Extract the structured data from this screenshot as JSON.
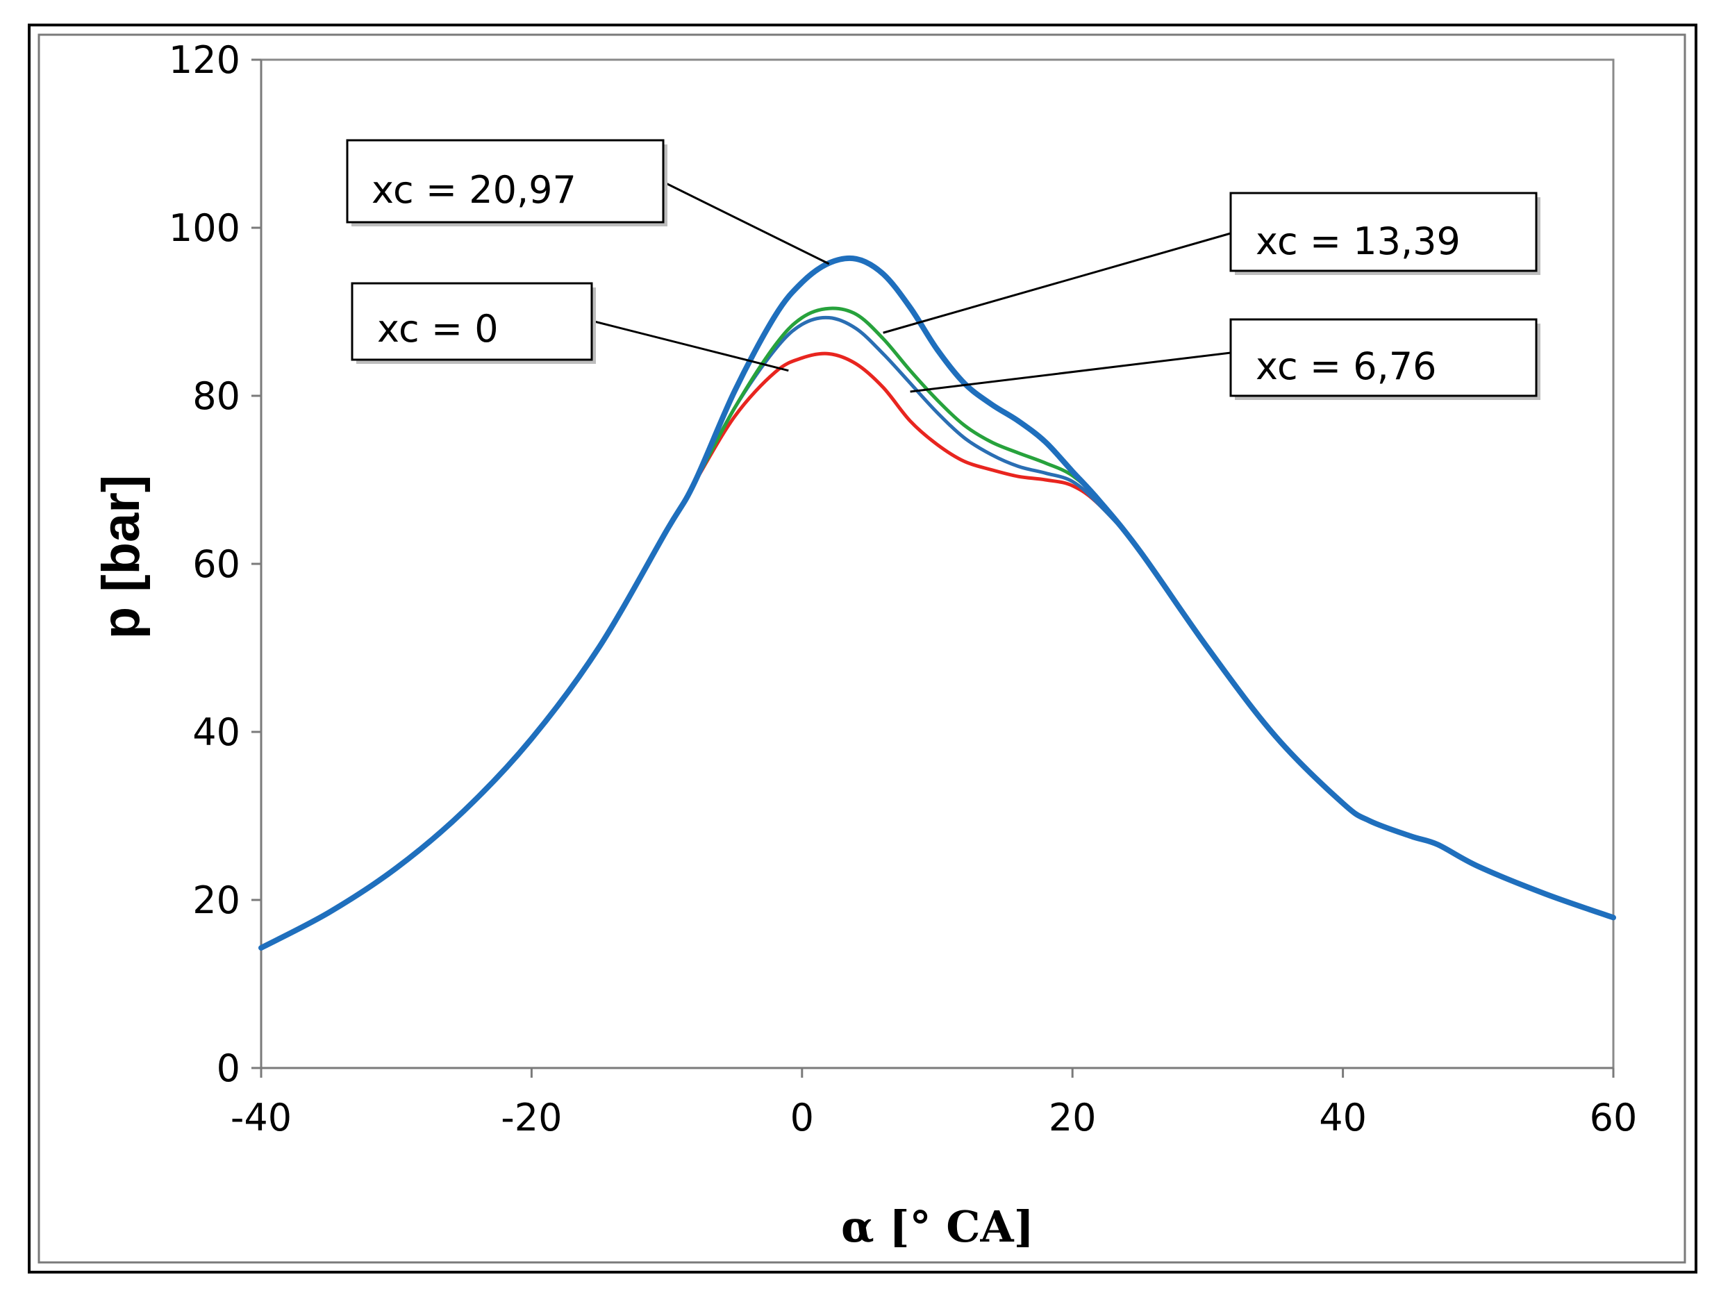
{
  "chart_data": {
    "type": "line",
    "title": "",
    "xlabel": "α [° CA]",
    "ylabel": "p [bar]",
    "xlim": [
      -40,
      60
    ],
    "ylim": [
      0,
      120
    ],
    "x_ticks": [
      "-40",
      "-20",
      "0",
      "20",
      "40",
      "60"
    ],
    "y_ticks": [
      "0",
      "20",
      "40",
      "60",
      "80",
      "100",
      "120"
    ],
    "grid": false,
    "colors": {
      "xc_0": "#e8251f",
      "xc_6_76": "#2a6eb3",
      "xc_13_39": "#27a23c",
      "xc_20_97": "#1f6fbd"
    },
    "series": [
      {
        "name": "xc = 0",
        "color_key": "xc_0",
        "x": [
          -40,
          -35,
          -30,
          -25,
          -20,
          -15,
          -10,
          -8,
          -5,
          -2,
          0,
          2,
          4,
          6,
          8,
          10,
          12,
          14,
          16,
          18,
          20,
          22,
          25,
          30,
          35,
          40,
          42,
          45,
          47,
          50,
          55,
          60
        ],
        "y": [
          14.3,
          18.5,
          23.8,
          30.6,
          39.2,
          50.1,
          64,
          69.5,
          77.5,
          82.8,
          84.5,
          85,
          83.8,
          81,
          77,
          74.2,
          72.2,
          71.2,
          70.4,
          70,
          69.3,
          67,
          61.5,
          50,
          39.5,
          31.5,
          29.4,
          27.6,
          26.6,
          24,
          20.7,
          17.9
        ]
      },
      {
        "name": "xc = 6,76",
        "color_key": "xc_6_76",
        "x": [
          -40,
          -35,
          -30,
          -25,
          -20,
          -15,
          -10,
          -8,
          -5,
          -2,
          0,
          2,
          4,
          6,
          8,
          10,
          12,
          14,
          16,
          18,
          20,
          22,
          25,
          30,
          35,
          40,
          42,
          45,
          47,
          50,
          55,
          60
        ],
        "y": [
          14.3,
          18.5,
          23.8,
          30.6,
          39.2,
          50.1,
          64,
          69.5,
          78.5,
          85.5,
          88.5,
          89.3,
          88,
          85,
          81.5,
          78,
          75,
          73,
          71.6,
          70.8,
          69.8,
          67,
          61.5,
          50,
          39.5,
          31.5,
          29.4,
          27.6,
          26.6,
          24,
          20.7,
          17.9
        ]
      },
      {
        "name": "xc = 13,39",
        "color_key": "xc_13_39",
        "x": [
          -40,
          -35,
          -30,
          -25,
          -20,
          -15,
          -10,
          -8,
          -5,
          -2,
          0,
          2,
          4,
          6,
          8,
          10,
          12,
          14,
          16,
          18,
          20,
          22,
          25,
          30,
          35,
          40,
          42,
          45,
          47,
          50,
          55,
          60
        ],
        "y": [
          14.3,
          18.5,
          23.8,
          30.6,
          39.2,
          50.1,
          64,
          69.5,
          78.5,
          86,
          89.3,
          90.4,
          89.7,
          86.8,
          83,
          79.5,
          76.5,
          74.5,
          73.2,
          72,
          70.5,
          67.5,
          61.5,
          50,
          39.5,
          31.5,
          29.4,
          27.6,
          26.6,
          24,
          20.7,
          17.9
        ]
      },
      {
        "name": "xc = 20,97",
        "color_key": "xc_20_97",
        "x": [
          -40,
          -35,
          -30,
          -25,
          -20,
          -15,
          -10,
          -8,
          -5,
          -2,
          0,
          2,
          4,
          6,
          8,
          10,
          12,
          14,
          16,
          18,
          20,
          22,
          25,
          30,
          35,
          40,
          42,
          45,
          47,
          50,
          55,
          60
        ],
        "y": [
          14.3,
          18.5,
          23.8,
          30.6,
          39.2,
          50.1,
          64,
          69.5,
          80.5,
          89.5,
          93.5,
          95.8,
          96.3,
          94.5,
          90.5,
          85.5,
          81.5,
          79,
          77,
          74.5,
          71,
          67.5,
          61.5,
          50,
          39.5,
          31.5,
          29.4,
          27.6,
          26.6,
          24,
          20.7,
          17.9
        ]
      }
    ],
    "annotations": [
      {
        "text": "xc = 20,97",
        "series": "xc = 20,97",
        "points_to": [
          2,
          95.7
        ]
      },
      {
        "text": "xc = 13,39",
        "series": "xc = 13,39",
        "points_to": [
          6,
          87.5
        ]
      },
      {
        "text": "xc = 0",
        "series": "xc = 0",
        "points_to": [
          -1,
          83
        ]
      },
      {
        "text": "xc = 6,76",
        "series": "xc = 6,76",
        "points_to": [
          8,
          80.5
        ]
      }
    ]
  }
}
